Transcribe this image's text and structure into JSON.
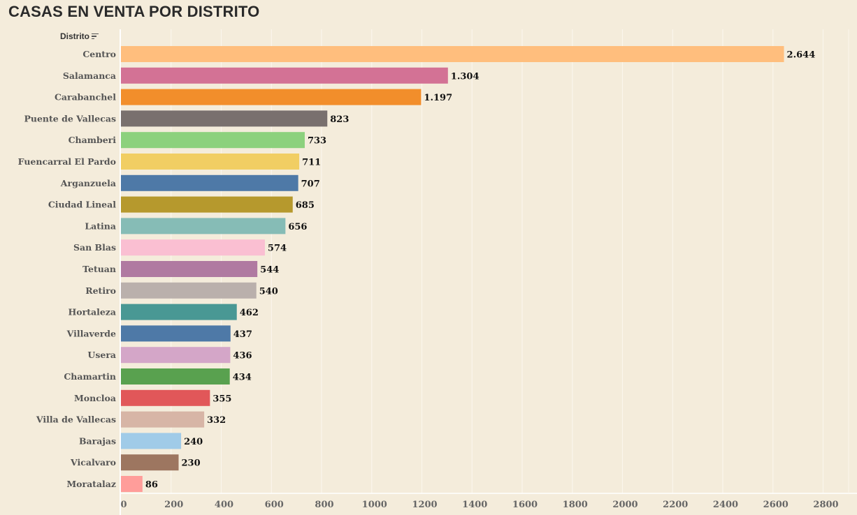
{
  "title": "CASAS EN VENTA POR DISTRITO",
  "field_header": "Distrito",
  "chart_data": {
    "type": "bar",
    "orientation": "horizontal",
    "title": "CASAS EN VENTA POR DISTRITO",
    "xlabel": "",
    "ylabel": "Distrito",
    "xlim": [
      0,
      2850
    ],
    "ticks": [
      0,
      200,
      400,
      600,
      800,
      1000,
      1200,
      1400,
      1600,
      1800,
      2000,
      2200,
      2400,
      2600,
      2800
    ],
    "grid": true,
    "categories": [
      "Centro",
      "Salamanca",
      "Carabanchel",
      "Puente de Vallecas",
      "Chamberi",
      "Fuencarral  El Pardo",
      "Arganzuela",
      "Ciudad Lineal",
      "Latina",
      "San Blas",
      "Tetuan",
      "Retiro",
      "Hortaleza",
      "Villaverde",
      "Usera",
      "Chamartin",
      "Moncloa",
      "Villa de Vallecas",
      "Barajas",
      "Vicalvaro",
      "Moratalaz"
    ],
    "values": [
      2644,
      1304,
      1197,
      823,
      733,
      711,
      707,
      685,
      656,
      574,
      544,
      540,
      462,
      437,
      436,
      434,
      355,
      332,
      240,
      230,
      86
    ],
    "value_labels": [
      "2.644",
      "1.304",
      "1.197",
      "823",
      "733",
      "711",
      "707",
      "685",
      "656",
      "574",
      "544",
      "540",
      "462",
      "437",
      "436",
      "434",
      "355",
      "332",
      "240",
      "230",
      "86"
    ],
    "colors": [
      "#ffbe7d",
      "#d37295",
      "#f28e2b",
      "#79706e",
      "#8cd17d",
      "#f1ce63",
      "#4e79a7",
      "#b6992d",
      "#86bcb6",
      "#fabfd2",
      "#b07aa1",
      "#bab0ac",
      "#499894",
      "#4e79a7",
      "#d4a6c8",
      "#59a14f",
      "#e15759",
      "#d7b5a6",
      "#a0cbe8",
      "#9d7660",
      "#ff9d9a"
    ]
  }
}
